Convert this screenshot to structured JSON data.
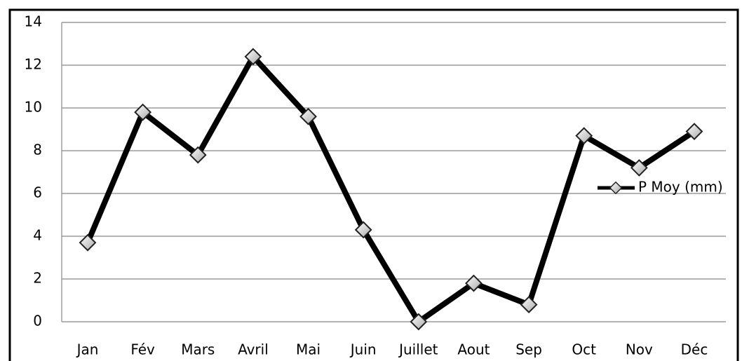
{
  "chart_data": {
    "type": "line",
    "categories": [
      "Jan",
      "Fév",
      "Mars",
      "Avril",
      "Mai",
      "Juin",
      "Juillet",
      "Aout",
      "Sep",
      "Oct",
      "Nov",
      "Déc"
    ],
    "series": [
      {
        "name": "P Moy (mm)",
        "color": "#000000",
        "values": [
          3.7,
          9.8,
          7.8,
          12.4,
          9.6,
          4.3,
          0,
          1.8,
          0.8,
          8.7,
          7.2,
          8.9
        ]
      }
    ],
    "ylim": [
      0,
      14
    ],
    "yticks": [
      0,
      2,
      4,
      6,
      8,
      10,
      12,
      14
    ],
    "grid": true,
    "legend": "right"
  }
}
